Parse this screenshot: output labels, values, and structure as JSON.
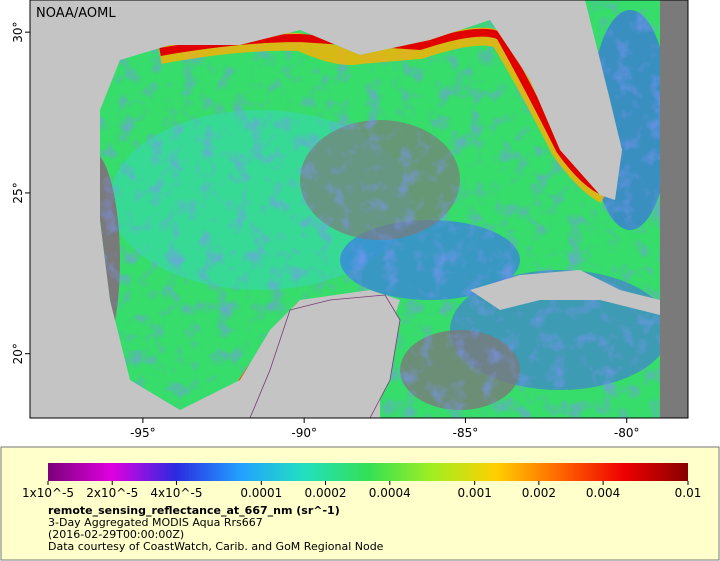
{
  "map": {
    "credit": "NOAA/AOML",
    "xlim": [
      -98.5,
      -78.1
    ],
    "ylim": [
      18,
      31
    ],
    "xticks": [
      {
        "value": -95,
        "label": "-95°"
      },
      {
        "value": -90,
        "label": "-90°"
      },
      {
        "value": -85,
        "label": "-85°"
      },
      {
        "value": -80,
        "label": "-80°"
      }
    ],
    "yticks": [
      {
        "value": 20,
        "label": "20°"
      },
      {
        "value": 25,
        "label": "25°"
      },
      {
        "value": 30,
        "label": "30°"
      }
    ]
  },
  "colorbar": {
    "scale": "log",
    "lim": [
      1e-05,
      0.01
    ],
    "colors": [
      "#7a007a",
      "#e000e0",
      "#2a2ae0",
      "#22a0ff",
      "#22e0c0",
      "#33e055",
      "#a0ee22",
      "#ffd000",
      "#ff6600",
      "#ee0000",
      "#880000"
    ],
    "ticks": [
      {
        "value": 1e-05,
        "label": "1x10^-5"
      },
      {
        "value": 2e-05,
        "label": "2x10^-5"
      },
      {
        "value": 4e-05,
        "label": "4x10^-5"
      },
      {
        "value": 0.0001,
        "label": "0.0001"
      },
      {
        "value": 0.0002,
        "label": "0.0002"
      },
      {
        "value": 0.0004,
        "label": "0.0004"
      },
      {
        "value": 0.001,
        "label": "0.001"
      },
      {
        "value": 0.002,
        "label": "0.002"
      },
      {
        "value": 0.004,
        "label": "0.004"
      },
      {
        "value": 0.01,
        "label": "0.01"
      }
    ]
  },
  "caption": {
    "title": "remote_sensing_reflectance_at_667_nm (sr^-1)",
    "lines": [
      "3-Day Aggregated MODIS Aqua Rrs667",
      "(2016-02-29T00:00:00Z)",
      "Data courtesy of CoastWatch, Carib. and GoM Regional Node"
    ]
  }
}
